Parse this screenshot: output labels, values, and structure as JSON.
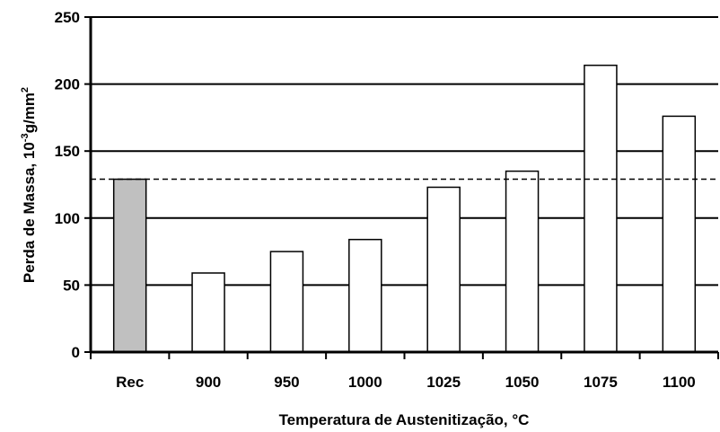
{
  "chart_data": {
    "type": "bar",
    "categories": [
      "Rec",
      "900",
      "950",
      "1000",
      "1025",
      "1050",
      "1075",
      "1100"
    ],
    "values": [
      129,
      59,
      75,
      84,
      123,
      135,
      214,
      176
    ],
    "bar_colors": [
      "#c0c0c0",
      "#ffffff",
      "#ffffff",
      "#ffffff",
      "#ffffff",
      "#ffffff",
      "#ffffff",
      "#ffffff"
    ],
    "xlabel": "Temperatura de Austenitização, °C",
    "ylabel_parts": [
      "Perda de Massa, 10",
      "-3",
      "g/mm",
      "2"
    ],
    "ylim": [
      0,
      250
    ],
    "yticks": [
      "0",
      "50",
      "100",
      "150",
      "200",
      "250"
    ],
    "grid": true,
    "reference_line": 129
  }
}
